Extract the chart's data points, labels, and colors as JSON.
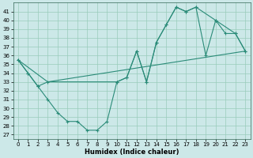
{
  "xlabel": "Humidex (Indice chaleur)",
  "xlim": [
    -0.5,
    23.5
  ],
  "ylim": [
    26.5,
    42.0
  ],
  "yticks": [
    27,
    28,
    29,
    30,
    31,
    32,
    33,
    34,
    35,
    36,
    37,
    38,
    39,
    40,
    41
  ],
  "xticks": [
    0,
    1,
    2,
    3,
    4,
    5,
    6,
    7,
    8,
    9,
    10,
    11,
    12,
    13,
    14,
    15,
    16,
    17,
    18,
    19,
    20,
    21,
    22,
    23
  ],
  "line_color": "#2a8b78",
  "bg_color": "#cce8e8",
  "grid_color": "#99ccbb",
  "curve1_x": [
    0,
    1,
    2,
    3,
    4,
    5,
    6,
    7,
    8,
    9,
    10,
    11,
    12,
    13,
    14,
    15,
    16,
    17,
    18,
    19,
    20,
    21,
    22,
    23
  ],
  "curve1_y": [
    35.5,
    34.0,
    32.5,
    31.0,
    29.5,
    28.5,
    28.5,
    27.5,
    27.5,
    28.5,
    33.0,
    33.5,
    36.5,
    33.0,
    37.5,
    39.5,
    41.5,
    41.0,
    41.5,
    36.0,
    40.0,
    38.5,
    38.5,
    36.5
  ],
  "curve2_x": [
    0,
    1,
    2,
    3,
    10,
    11,
    12,
    13,
    14,
    15,
    16,
    17,
    18,
    20,
    22,
    23
  ],
  "curve2_y": [
    35.5,
    34.0,
    32.5,
    33.0,
    33.0,
    33.5,
    36.5,
    33.0,
    37.5,
    39.5,
    41.5,
    41.0,
    41.5,
    40.0,
    38.5,
    36.5
  ],
  "curve3_x": [
    0,
    3,
    23
  ],
  "curve3_y": [
    35.5,
    33.0,
    36.5
  ]
}
